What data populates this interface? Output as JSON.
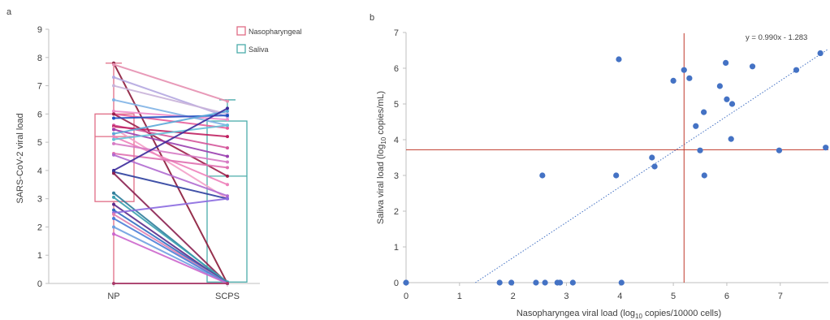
{
  "panels": {
    "a": {
      "label": "a"
    },
    "b": {
      "label": "b"
    }
  },
  "colors": {
    "axis": "#bfbfbf",
    "text": "#404040",
    "nasopharyngeal": "#e06c85",
    "saliva": "#4bacaa",
    "scatter": "#4472c4",
    "median_line": "#c0392b",
    "trendline": "#4472c4"
  },
  "chart_data": [
    {
      "type": "box-paired-line",
      "panel": "a",
      "ylabel": "SARS-CoV-2 viral load",
      "categories": [
        "NP",
        "SCPS"
      ],
      "yticks": [
        "0",
        "1",
        "2",
        "3",
        "4",
        "5",
        "6",
        "7",
        "8",
        "9"
      ],
      "ylim": [
        0,
        9
      ],
      "legend": [
        "Nasopharyngeal",
        "Saliva"
      ],
      "legend_position": "top-right",
      "boxes": [
        {
          "name": "Nasopharyngeal",
          "min": 0,
          "q1": 2.9,
          "median": 5.2,
          "q3": 6.0,
          "max": 7.8
        },
        {
          "name": "Saliva",
          "min": 0,
          "q1": 0.05,
          "median": 3.8,
          "q3": 5.75,
          "max": 6.5
        }
      ],
      "pairs": [
        {
          "np": 7.8,
          "scps": 0,
          "color": "#8b1a3a"
        },
        {
          "np": 7.75,
          "scps": 6.45,
          "color": "#e58fb0"
        },
        {
          "np": 7.3,
          "scps": 5.9,
          "color": "#b4a7e0"
        },
        {
          "np": 7.0,
          "scps": 6.0,
          "color": "#c9b3d9"
        },
        {
          "np": 6.5,
          "scps": 5.6,
          "color": "#7fb2e5"
        },
        {
          "np": 6.1,
          "scps": 5.8,
          "color": "#f08cc9"
        },
        {
          "np": 6.0,
          "scps": 5.5,
          "color": "#e85d9a"
        },
        {
          "np": 6.0,
          "scps": 3.8,
          "color": "#9c1f4a"
        },
        {
          "np": 5.85,
          "scps": 5.95,
          "color": "#1f4fc1"
        },
        {
          "np": 5.6,
          "scps": 4.8,
          "color": "#d4559a"
        },
        {
          "np": 5.55,
          "scps": 5.2,
          "color": "#c02060"
        },
        {
          "np": 5.5,
          "scps": 3.0,
          "color": "#f3a0c8"
        },
        {
          "np": 5.45,
          "scps": 4.5,
          "color": "#9a3fb0"
        },
        {
          "np": 5.3,
          "scps": 6.1,
          "color": "#5aa8d8"
        },
        {
          "np": 5.2,
          "scps": 3.5,
          "color": "#ee82bb"
        },
        {
          "np": 5.1,
          "scps": 5.6,
          "color": "#66c0d8"
        },
        {
          "np": 4.95,
          "scps": 4.3,
          "color": "#d67ac4"
        },
        {
          "np": 4.6,
          "scps": 4.1,
          "color": "#e070b0"
        },
        {
          "np": 4.55,
          "scps": 3.1,
          "color": "#b06ad0"
        },
        {
          "np": 4.0,
          "scps": 6.2,
          "color": "#3a2a9a"
        },
        {
          "np": 3.95,
          "scps": 3.0,
          "color": "#2c3f9e"
        },
        {
          "np": 3.9,
          "scps": 0,
          "color": "#8a2050"
        },
        {
          "np": 3.2,
          "scps": 0,
          "color": "#2e7d9a"
        },
        {
          "np": 3.05,
          "scps": 0.05,
          "color": "#3aa0b0"
        },
        {
          "np": 2.8,
          "scps": 0,
          "color": "#5a2a8a"
        },
        {
          "np": 2.6,
          "scps": 0,
          "color": "#2f6cc0"
        },
        {
          "np": 2.5,
          "scps": 3.0,
          "color": "#8b6ae0"
        },
        {
          "np": 2.45,
          "scps": 0,
          "color": "#e080b0"
        },
        {
          "np": 2.3,
          "scps": 0,
          "color": "#4a7dd8"
        },
        {
          "np": 2.0,
          "scps": 0,
          "color": "#6fa0e0"
        },
        {
          "np": 1.75,
          "scps": 0,
          "color": "#cc66cc"
        },
        {
          "np": 0,
          "scps": 0,
          "color": "#a83868"
        }
      ]
    },
    {
      "type": "scatter",
      "panel": "b",
      "xlabel": "Nasopharyngea viral load (log",
      "xlabel_sub": "10",
      "xlabel_rest": " copies/10000 cells)",
      "ylabel": "Saliva viral load (log",
      "ylabel_sub": "10",
      "ylabel_rest": " copies/mL)",
      "xticks": [
        "0",
        "1",
        "2",
        "3",
        "4",
        "5",
        "6",
        "7"
      ],
      "yticks": [
        "0",
        "1",
        "2",
        "3",
        "4",
        "5",
        "6",
        "7"
      ],
      "xlim": [
        0,
        7.9
      ],
      "ylim": [
        0,
        7
      ],
      "trendline_label": "y = 0.990x - 1.283",
      "trendline": {
        "slope": 0.99,
        "intercept": -1.283
      },
      "reference_lines": {
        "x": 5.2,
        "y": 3.72
      },
      "points": [
        {
          "x": 0,
          "y": 0
        },
        {
          "x": 1.75,
          "y": 0
        },
        {
          "x": 1.97,
          "y": 0
        },
        {
          "x": 2.43,
          "y": 0
        },
        {
          "x": 2.6,
          "y": 0
        },
        {
          "x": 2.83,
          "y": 0
        },
        {
          "x": 2.88,
          "y": 0
        },
        {
          "x": 3.12,
          "y": 0
        },
        {
          "x": 4.03,
          "y": 0
        },
        {
          "x": 2.55,
          "y": 3.0
        },
        {
          "x": 3.93,
          "y": 3.0
        },
        {
          "x": 4.6,
          "y": 3.5
        },
        {
          "x": 4.65,
          "y": 3.25
        },
        {
          "x": 3.98,
          "y": 6.25
        },
        {
          "x": 5.0,
          "y": 5.65
        },
        {
          "x": 5.2,
          "y": 5.95
        },
        {
          "x": 5.3,
          "y": 5.72
        },
        {
          "x": 5.42,
          "y": 4.38
        },
        {
          "x": 5.5,
          "y": 3.7
        },
        {
          "x": 5.57,
          "y": 4.77
        },
        {
          "x": 5.58,
          "y": 3.0
        },
        {
          "x": 5.87,
          "y": 5.5
        },
        {
          "x": 5.98,
          "y": 6.15
        },
        {
          "x": 6.0,
          "y": 5.13
        },
        {
          "x": 6.08,
          "y": 4.02
        },
        {
          "x": 6.1,
          "y": 5.0
        },
        {
          "x": 6.48,
          "y": 6.05
        },
        {
          "x": 6.98,
          "y": 3.7
        },
        {
          "x": 7.3,
          "y": 5.95
        },
        {
          "x": 7.75,
          "y": 6.42
        },
        {
          "x": 7.85,
          "y": 3.78
        }
      ]
    }
  ]
}
